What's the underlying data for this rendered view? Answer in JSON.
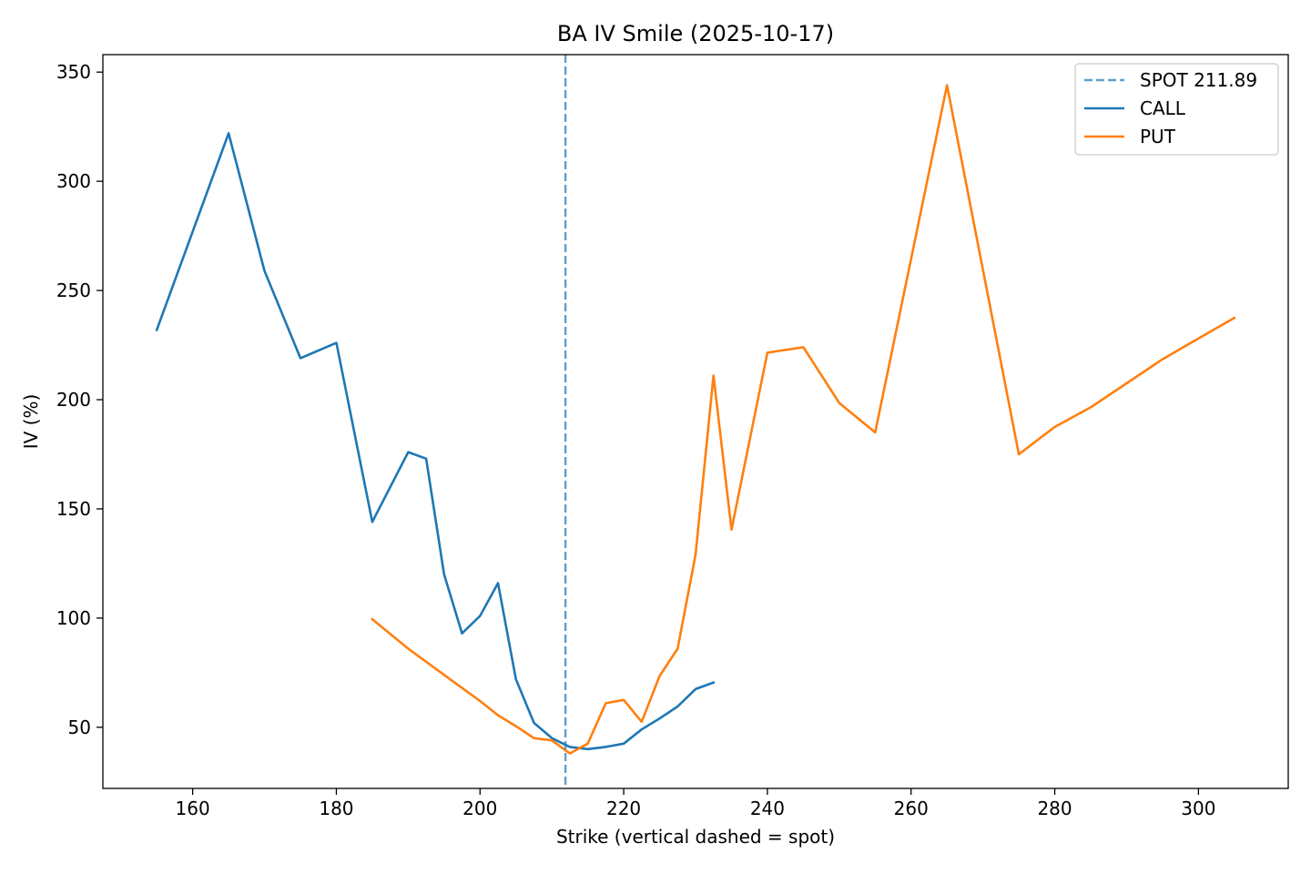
{
  "chart_data": {
    "type": "line",
    "title": "BA IV Smile (2025-10-17)",
    "xlabel": "Strike (vertical dashed = spot)",
    "ylabel": "IV (%)",
    "xlim": [
      147.5,
      312.5
    ],
    "ylim": [
      22,
      358
    ],
    "xticks": [
      160,
      180,
      200,
      220,
      240,
      260,
      280,
      300
    ],
    "yticks": [
      50,
      100,
      150,
      200,
      250,
      300,
      350
    ],
    "grid": false,
    "legend_position": "top-right",
    "spot": {
      "label": "SPOT 211.89",
      "value": 211.89,
      "color": "#1f77b4"
    },
    "series": [
      {
        "name": "CALL",
        "color": "#1f77b4",
        "x": [
          155,
          165,
          170,
          175,
          180,
          185,
          190,
          192.5,
          195,
          197.5,
          200,
          202.5,
          205,
          207.5,
          210,
          212.5,
          215,
          217.5,
          220,
          222.5,
          225,
          227.5,
          230,
          232.5
        ],
        "y": [
          232,
          322,
          259,
          219,
          226,
          144,
          176,
          173,
          120,
          93,
          101,
          116,
          72,
          52,
          45,
          41,
          40,
          41,
          42.5,
          49,
          54,
          59.5,
          67.5,
          70.5
        ]
      },
      {
        "name": "PUT",
        "color": "#ff7f0e",
        "x": [
          185,
          190,
          195,
          200,
          202.5,
          205,
          207.5,
          210,
          212.5,
          215,
          217.5,
          220,
          222.5,
          225,
          227.5,
          230,
          232.5,
          235,
          240,
          245,
          250,
          255,
          265,
          275,
          280,
          285,
          290,
          295,
          300,
          305
        ],
        "y": [
          99.5,
          86,
          74,
          62,
          55.5,
          50.5,
          45,
          44,
          38,
          42.5,
          61,
          62.5,
          52.5,
          73.5,
          86,
          129,
          211,
          140.5,
          221.5,
          224,
          198.5,
          185,
          344,
          175,
          187.5,
          196.5,
          207.5,
          218.5,
          228,
          237.5
        ]
      }
    ]
  }
}
